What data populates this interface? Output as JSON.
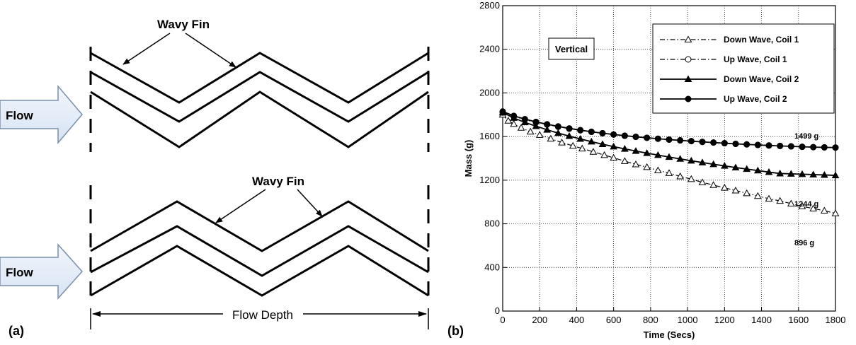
{
  "panel_a": {
    "label": "(a)",
    "top_fin_label": "Wavy Fin",
    "bottom_fin_label": "Wavy Fin",
    "top_flow_label": "Flow",
    "bottom_flow_label": "Flow",
    "depth_label": "Flow Depth"
  },
  "panel_b": {
    "label": "(b)",
    "orientation_label": "Vertical",
    "end_labels": [
      "1499 g",
      "1244 g",
      "896 g"
    ]
  },
  "chart_data": {
    "type": "line",
    "xlabel": "Time (Secs)",
    "ylabel": "Mass (g)",
    "xlim": [
      0,
      1800
    ],
    "ylim": [
      0,
      2800
    ],
    "xticks": [
      0,
      200,
      400,
      600,
      800,
      1000,
      1200,
      1400,
      1600,
      1800
    ],
    "yticks": [
      0,
      400,
      800,
      1200,
      1600,
      2000,
      2400,
      2800
    ],
    "grid": true,
    "legend_position": "top-right",
    "series": [
      {
        "name": "Down Wave, Coil 1",
        "line_style": "dash-dot",
        "marker": "open-triangle",
        "x": [
          0,
          30,
          60,
          100,
          150,
          200,
          260,
          320,
          380,
          430,
          490,
          550,
          600,
          660,
          720,
          780,
          840,
          900,
          960,
          1020,
          1080,
          1140,
          1200,
          1260,
          1320,
          1380,
          1440,
          1500,
          1560,
          1620,
          1680,
          1740,
          1800
        ],
        "y": [
          1800,
          1745,
          1715,
          1680,
          1645,
          1615,
          1580,
          1545,
          1515,
          1490,
          1460,
          1430,
          1405,
          1375,
          1345,
          1320,
          1290,
          1265,
          1235,
          1210,
          1180,
          1155,
          1130,
          1105,
          1080,
          1055,
          1030,
          1010,
          985,
          960,
          940,
          920,
          896
        ]
      },
      {
        "name": "Up Wave, Coil 1",
        "line_style": "dash-dot",
        "marker": "open-circle",
        "x": [
          0,
          60,
          120,
          180,
          240,
          300,
          360,
          420,
          480,
          540,
          600,
          660,
          720,
          780,
          840,
          900,
          960,
          1020,
          1080,
          1140,
          1200,
          1260,
          1320,
          1380,
          1440,
          1500,
          1560,
          1620,
          1680,
          1740,
          1800
        ],
        "y": [
          1820,
          1785,
          1755,
          1730,
          1710,
          1690,
          1672,
          1657,
          1643,
          1630,
          1618,
          1607,
          1597,
          1588,
          1580,
          1572,
          1565,
          1558,
          1551,
          1545,
          1539,
          1533,
          1528,
          1523,
          1518,
          1514,
          1510,
          1506,
          1503,
          1501,
          1499
        ]
      },
      {
        "name": "Down Wave, Coil 2",
        "line_style": "solid",
        "marker": "filled-triangle",
        "x": [
          0,
          60,
          120,
          180,
          240,
          300,
          360,
          420,
          480,
          540,
          600,
          660,
          720,
          780,
          840,
          900,
          960,
          1020,
          1080,
          1140,
          1200,
          1260,
          1320,
          1380,
          1440,
          1500,
          1560,
          1620,
          1680,
          1740,
          1800
        ],
        "y": [
          1820,
          1770,
          1730,
          1695,
          1662,
          1632,
          1604,
          1578,
          1553,
          1530,
          1508,
          1487,
          1467,
          1448,
          1430,
          1412,
          1395,
          1378,
          1362,
          1346,
          1331,
          1316,
          1302,
          1288,
          1274,
          1261,
          1258,
          1255,
          1251,
          1248,
          1244
        ]
      },
      {
        "name": "Up Wave, Coil 2",
        "line_style": "solid",
        "marker": "filled-circle",
        "x": [
          0,
          60,
          120,
          180,
          240,
          300,
          360,
          420,
          480,
          540,
          600,
          660,
          720,
          780,
          840,
          900,
          960,
          1020,
          1080,
          1140,
          1200,
          1260,
          1320,
          1380,
          1440,
          1500,
          1560,
          1620,
          1680,
          1740,
          1800
        ],
        "y": [
          1830,
          1790,
          1760,
          1735,
          1713,
          1693,
          1675,
          1659,
          1644,
          1631,
          1619,
          1608,
          1598,
          1589,
          1580,
          1572,
          1565,
          1558,
          1551,
          1545,
          1539,
          1533,
          1528,
          1523,
          1518,
          1514,
          1510,
          1506,
          1503,
          1501,
          1499
        ]
      }
    ]
  }
}
